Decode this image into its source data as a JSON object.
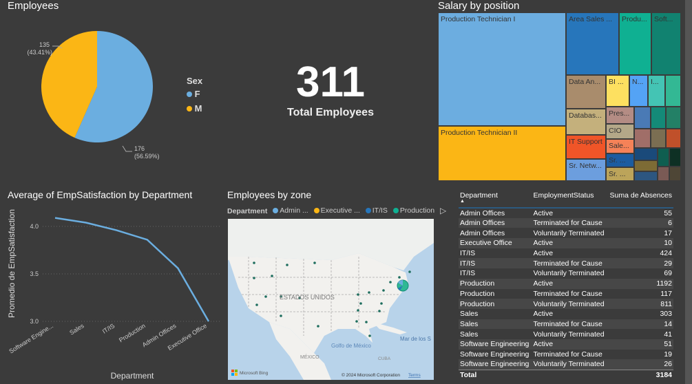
{
  "pie": {
    "title": "Employees",
    "legend_title": "Sex",
    "chart_data": {
      "type": "pie",
      "title": "Employees",
      "legend_title": "Sex",
      "slices": [
        {
          "label": "F",
          "value": 176,
          "percent": "56.59%",
          "color": "#6baee0",
          "value_label": "176",
          "pct_label": "(56.59%)"
        },
        {
          "label": "M",
          "value": 135,
          "percent": "43.41%",
          "color": "#fbb615",
          "value_label": "135",
          "pct_label": "(43.41%)"
        }
      ]
    }
  },
  "card": {
    "value": "311",
    "label": "Total Employees"
  },
  "treemap": {
    "title": "Salary by position",
    "tiles": [
      {
        "label": "Production Technician I",
        "color": "#6cade0"
      },
      {
        "label": "Production Technician II",
        "color": "#fbb615"
      },
      {
        "label": "Area Sales ...",
        "color": "#2776bb"
      },
      {
        "label": "Produ...",
        "color": "#0fb092"
      },
      {
        "label": "Soft...",
        "color": "#118270"
      },
      {
        "label": "Data An...",
        "color": "#a98c6c"
      },
      {
        "label": "BI ...",
        "color": "#fde060"
      },
      {
        "label": "N...",
        "color": "#54a3f5"
      },
      {
        "label": "I...",
        "color": "#44c4b4"
      },
      {
        "label": "Databas...",
        "color": "#c4b07c"
      },
      {
        "label": "Pres...",
        "color": "#b48c84"
      },
      {
        "label": "CIO",
        "color": "#b4a888"
      },
      {
        "label": "IT Support",
        "color": "#f05528"
      },
      {
        "label": "Sale...",
        "color": "#f58258"
      },
      {
        "label": "Sr. Netw...",
        "color": "#6c9ede"
      },
      {
        "label": "Sr. ...",
        "color": "#1c5ca0"
      },
      {
        "label": "Sr. ...",
        "color": "#bca45a"
      }
    ]
  },
  "line": {
    "title": "Average of EmpSatisfaction by Department",
    "chart_data": {
      "type": "line",
      "title": "Average of EmpSatisfaction by Department",
      "xlabel": "Department",
      "ylabel": "Promedio de EmpSatisfaction",
      "categories": [
        "Software Engine...",
        "Sales",
        "IT/IS",
        "Production",
        "Admin Offices",
        "Executive Office"
      ],
      "values": [
        4.09,
        4.04,
        3.96,
        3.86,
        3.56,
        3.0
      ],
      "yticks": [
        "3.0",
        "3.5",
        "4.0"
      ],
      "ylim": [
        3.0,
        4.0
      ],
      "grid": true,
      "color": "#6baee0"
    }
  },
  "map": {
    "title": "Employees by zone",
    "legend_title": "Department",
    "legend": [
      {
        "label": "Admin ...",
        "color": "#6baee0"
      },
      {
        "label": "Executive ...",
        "color": "#fbb615"
      },
      {
        "label": "IT/IS",
        "color": "#2776bb"
      },
      {
        "label": "Production",
        "color": "#0fb092"
      }
    ],
    "country_label": "ESTADOS UNIDOS",
    "gulf_label": "Golfo de México",
    "mexico_label": "MÉXICO",
    "sea_label": "Mar de los S",
    "cuba_label": "CUBA",
    "bing": "Microsoft Bing",
    "copyright": "© 2024 Microsoft Corporation",
    "terms": "Terms"
  },
  "table": {
    "columns": [
      "Department",
      "EmploymentStatus",
      "Suma de Absences"
    ],
    "rows": [
      [
        "Admin Offices",
        "Active",
        "55"
      ],
      [
        "Admin Offices",
        "Terminated for Cause",
        "6"
      ],
      [
        "Admin Offices",
        "Voluntarily Terminated",
        "17"
      ],
      [
        "Executive Office",
        "Active",
        "10"
      ],
      [
        "IT/IS",
        "Active",
        "424"
      ],
      [
        "IT/IS",
        "Terminated for Cause",
        "29"
      ],
      [
        "IT/IS",
        "Voluntarily Terminated",
        "69"
      ],
      [
        "Production",
        "Active",
        "1192"
      ],
      [
        "Production",
        "Terminated for Cause",
        "117"
      ],
      [
        "Production",
        "Voluntarily Terminated",
        "811"
      ],
      [
        "Sales",
        "Active",
        "303"
      ],
      [
        "Sales",
        "Terminated for Cause",
        "14"
      ],
      [
        "Sales",
        "Voluntarily Terminated",
        "41"
      ],
      [
        "Software Engineering",
        "Active",
        "51"
      ],
      [
        "Software Engineering",
        "Terminated for Cause",
        "19"
      ],
      [
        "Software Engineering",
        "Voluntarily Terminated",
        "26"
      ]
    ],
    "total_label": "Total",
    "total_value": "3184"
  }
}
